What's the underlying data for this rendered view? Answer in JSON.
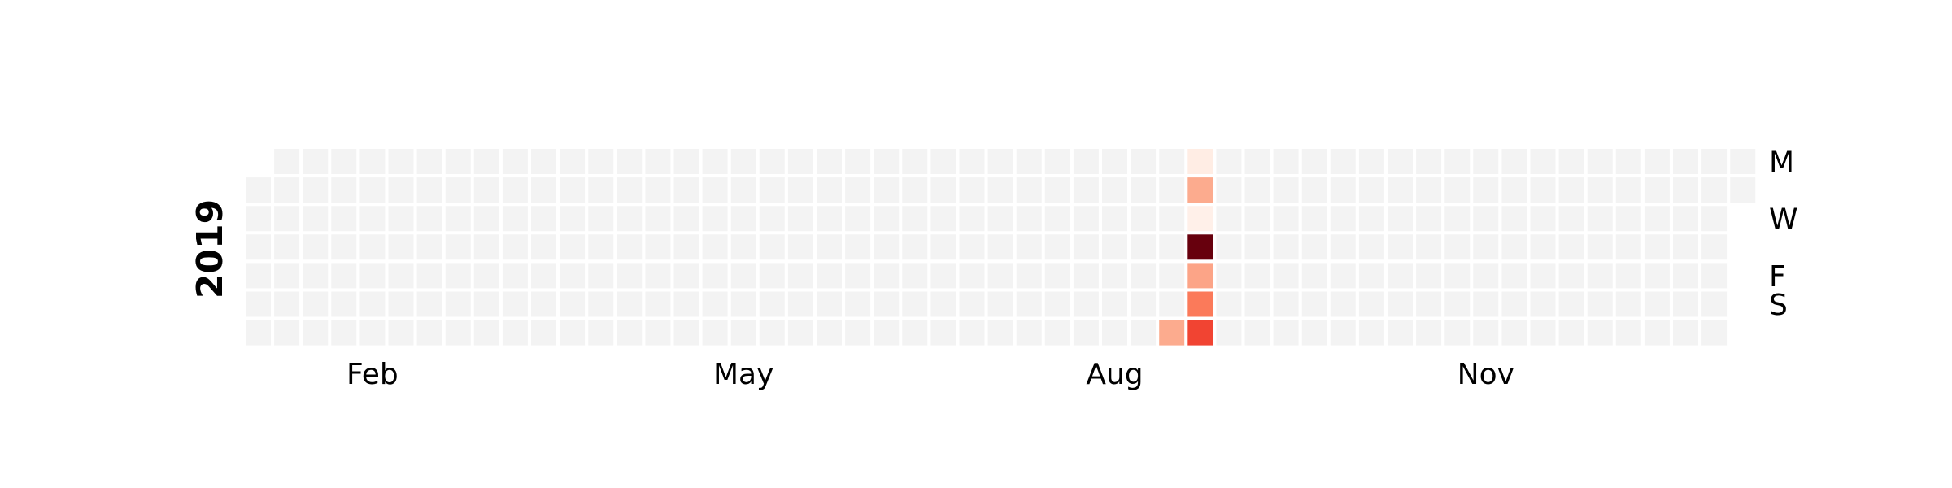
{
  "chart_data": {
    "type": "heatmap",
    "title": "",
    "year_label": "2019",
    "year": 2019,
    "first_day": "2019-01-01",
    "x_tick_labels": [
      "Feb",
      "May",
      "Aug",
      "Nov"
    ],
    "x_tick_dates": [
      "2019-02-01",
      "2019-05-01",
      "2019-08-01",
      "2019-11-01"
    ],
    "y_tick_labels": [
      "M",
      "W",
      "F",
      "S"
    ],
    "y_tick_days": [
      "Mon",
      "Wed",
      "Fri",
      "Sat"
    ],
    "rows": [
      "Mon",
      "Tue",
      "Wed",
      "Thu",
      "Fri",
      "Sat",
      "Sun"
    ],
    "colormap": "Reds",
    "empty_color": "#f3f3f3",
    "vmin": 0,
    "vmax": 10,
    "values": [
      {
        "date": "2019-08-18",
        "value": 3
      },
      {
        "date": "2019-08-19",
        "value": 0.5
      },
      {
        "date": "2019-08-20",
        "value": 3
      },
      {
        "date": "2019-08-21",
        "value": 0.3
      },
      {
        "date": "2019-08-22",
        "value": 10
      },
      {
        "date": "2019-08-23",
        "value": 3.2
      },
      {
        "date": "2019-08-24",
        "value": 4.5
      },
      {
        "date": "2019-08-25",
        "value": 6
      }
    ]
  }
}
